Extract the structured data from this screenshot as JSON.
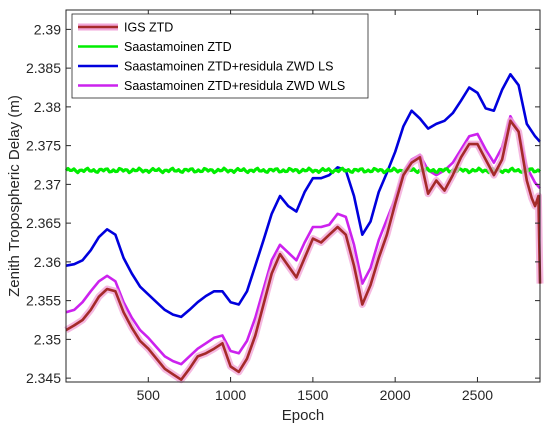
{
  "chart_data": {
    "type": "line",
    "title": "",
    "xlabel": "Epoch",
    "ylabel": "Zenith Tropospheric Delay (m)",
    "xlim": [
      0,
      2880
    ],
    "ylim": [
      2.3445,
      2.3925
    ],
    "xticks": [
      500,
      1000,
      1500,
      2000,
      2500
    ],
    "yticks": [
      2.345,
      2.35,
      2.355,
      2.36,
      2.365,
      2.37,
      2.375,
      2.38,
      2.385,
      2.39
    ],
    "ytick_labels": [
      "2.345",
      "2.35",
      "2.355",
      "2.36",
      "2.365",
      "2.37",
      "2.375",
      "2.38",
      "2.385",
      "2.39"
    ],
    "grid": false,
    "legend_position": "top-left",
    "series": [
      {
        "name": "IGS ZTD",
        "color": "#a52a2a",
        "x": [
          0,
          50,
          100,
          150,
          200,
          250,
          300,
          350,
          400,
          450,
          500,
          550,
          600,
          650,
          700,
          750,
          800,
          850,
          900,
          950,
          1000,
          1050,
          1100,
          1150,
          1200,
          1250,
          1300,
          1350,
          1400,
          1450,
          1500,
          1550,
          1600,
          1650,
          1700,
          1750,
          1800,
          1850,
          1900,
          1950,
          2000,
          2050,
          2100,
          2150,
          2200,
          2250,
          2300,
          2350,
          2400,
          2450,
          2500,
          2550,
          2600,
          2650,
          2700,
          2750,
          2800,
          2830,
          2850,
          2870,
          2880
        ],
        "y": [
          2.3512,
          2.3518,
          2.3525,
          2.3538,
          2.3555,
          2.3565,
          2.3562,
          2.3535,
          2.3515,
          2.3498,
          2.3488,
          2.3475,
          2.3462,
          2.3455,
          2.3448,
          2.3462,
          2.3478,
          2.3482,
          2.3488,
          2.3495,
          2.3465,
          2.3458,
          2.3475,
          2.3505,
          2.3545,
          2.3585,
          2.361,
          2.3595,
          2.358,
          2.3605,
          2.363,
          2.3625,
          2.3635,
          2.3645,
          2.3635,
          2.3595,
          2.3545,
          2.357,
          2.3605,
          2.3635,
          2.3675,
          2.3712,
          2.3728,
          2.3735,
          2.3688,
          2.3705,
          2.3692,
          2.3712,
          2.3735,
          2.3752,
          2.3752,
          2.3732,
          2.3712,
          2.3732,
          2.3782,
          2.3768,
          2.3705,
          2.3682,
          2.3672,
          2.3685,
          2.3572
        ]
      },
      {
        "name": "Saastamoinen ZTD",
        "color": "#00ee00",
        "x": [
          0,
          2880
        ],
        "y": [
          2.3718,
          2.3718
        ]
      },
      {
        "name": "Saastamoinen ZTD+residula ZWD LS",
        "color": "#0000dd",
        "x": [
          0,
          50,
          100,
          150,
          200,
          250,
          300,
          350,
          400,
          450,
          500,
          550,
          600,
          650,
          700,
          750,
          800,
          850,
          900,
          950,
          1000,
          1050,
          1100,
          1150,
          1200,
          1250,
          1300,
          1350,
          1400,
          1450,
          1500,
          1550,
          1600,
          1650,
          1700,
          1750,
          1800,
          1850,
          1900,
          1950,
          2000,
          2050,
          2100,
          2150,
          2200,
          2250,
          2300,
          2350,
          2400,
          2450,
          2500,
          2550,
          2600,
          2650,
          2700,
          2750,
          2800,
          2850,
          2880
        ],
        "y": [
          2.3595,
          2.3597,
          2.3602,
          2.3615,
          2.3632,
          2.3642,
          2.3635,
          2.3605,
          2.3585,
          2.3568,
          2.3558,
          2.3548,
          2.3538,
          2.3532,
          2.3529,
          2.3538,
          2.3548,
          2.3556,
          2.3562,
          2.3562,
          2.3548,
          2.3545,
          2.3562,
          2.3595,
          2.3628,
          2.3662,
          2.3685,
          2.3672,
          2.3665,
          2.369,
          2.3708,
          2.3708,
          2.3712,
          2.3722,
          2.3718,
          2.3685,
          2.3635,
          2.3652,
          2.369,
          2.3715,
          2.3742,
          2.3775,
          2.3795,
          2.3785,
          2.3772,
          2.3778,
          2.3782,
          2.3792,
          2.3808,
          2.3825,
          2.3818,
          2.3798,
          2.3795,
          2.3822,
          2.3842,
          2.3828,
          2.3778,
          2.3762,
          2.3755
        ]
      },
      {
        "name": "Saastamoinen ZTD+residula ZWD WLS",
        "color": "#cc22ee",
        "x": [
          0,
          50,
          100,
          150,
          200,
          250,
          300,
          350,
          400,
          450,
          500,
          550,
          600,
          650,
          700,
          750,
          800,
          850,
          900,
          950,
          1000,
          1050,
          1100,
          1150,
          1200,
          1250,
          1300,
          1350,
          1400,
          1450,
          1500,
          1550,
          1600,
          1650,
          1700,
          1750,
          1800,
          1850,
          1900,
          1950,
          2000,
          2050,
          2100,
          2150,
          2200,
          2250,
          2300,
          2350,
          2400,
          2450,
          2500,
          2550,
          2600,
          2650,
          2700,
          2750,
          2800,
          2850,
          2880
        ],
        "y": [
          2.3535,
          2.3538,
          2.3548,
          2.3562,
          2.3575,
          2.3582,
          2.3575,
          2.3548,
          2.3528,
          2.3512,
          2.3502,
          2.349,
          2.3478,
          2.3472,
          2.3468,
          2.3478,
          2.3488,
          2.3495,
          2.3502,
          2.3505,
          2.3485,
          2.3482,
          2.3498,
          2.3528,
          2.3565,
          2.3602,
          2.3622,
          2.3612,
          2.3602,
          2.3625,
          2.3645,
          2.3645,
          2.3648,
          2.3662,
          2.3658,
          2.3622,
          2.3572,
          2.3592,
          2.3628,
          2.3655,
          2.3682,
          2.3715,
          2.3732,
          2.3738,
          2.3718,
          2.3712,
          2.3718,
          2.3728,
          2.3745,
          2.3762,
          2.3765,
          2.3745,
          2.3728,
          2.3748,
          2.3788,
          2.3768,
          2.3722,
          2.3702,
          2.3695
        ]
      }
    ]
  }
}
